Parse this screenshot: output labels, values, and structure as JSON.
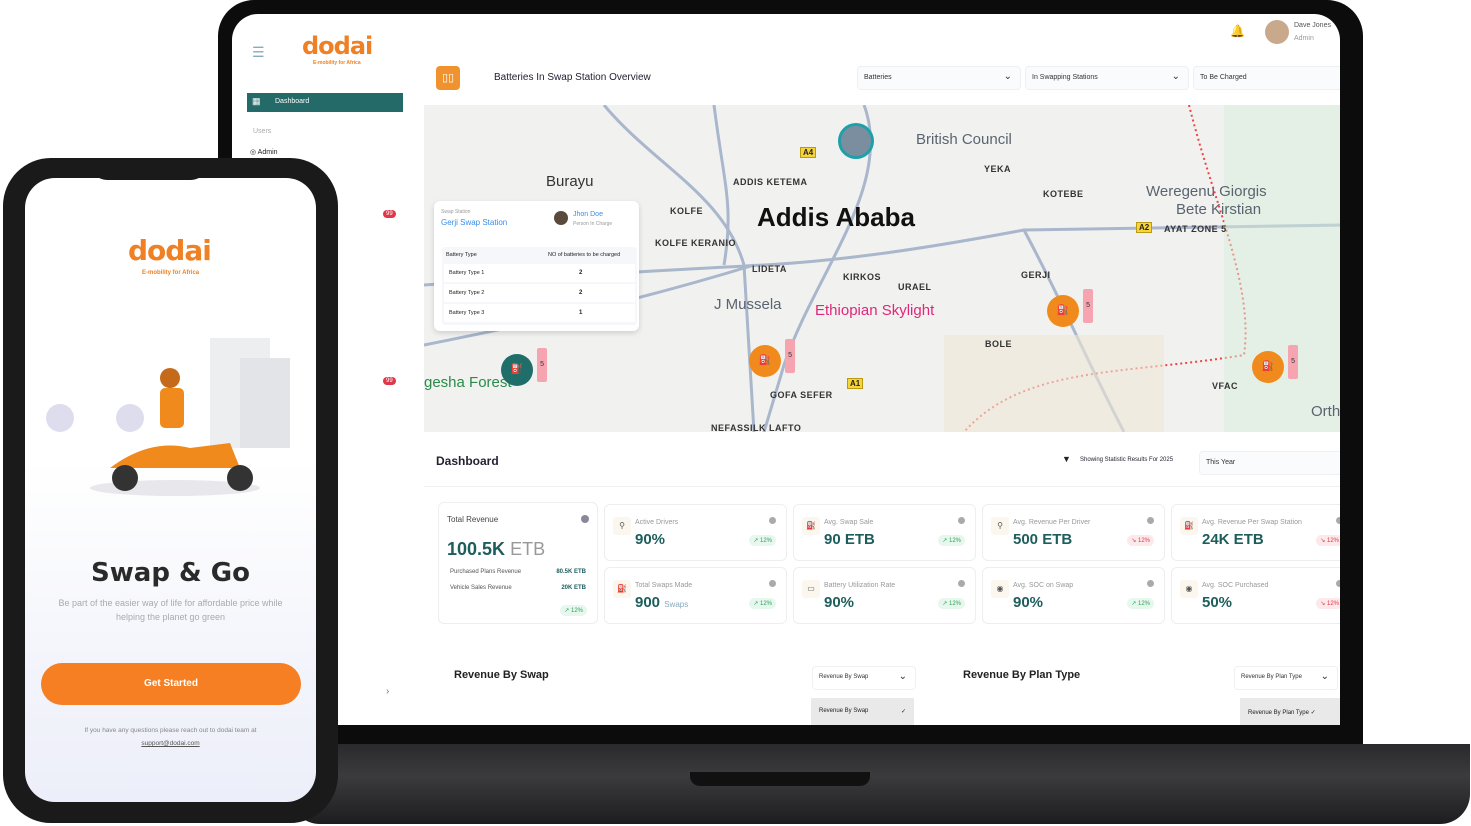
{
  "brand": {
    "name": "dodai",
    "tagline": "E-mobility for Africa",
    "accent": "#f08024",
    "primary": "#236a68"
  },
  "sidebar": {
    "dashboard": "Dashboard",
    "section_users": "Users",
    "admin": "Admin",
    "badges": [
      "99",
      "99"
    ]
  },
  "header": {
    "title": "Batteries In Swap Station Overview",
    "user_name": "Dave Jones",
    "user_role": "Admin",
    "filters": [
      "Batteries",
      "In Swapping Stations",
      "To Be Charged"
    ]
  },
  "map": {
    "labels": [
      "Burayu",
      "ADDIS KETEMA",
      "KOLFE",
      "Addis Ababa",
      "KOLFE KERANIO",
      "LIDETA",
      "KIRKOS",
      "URAEL",
      "J Mussela",
      "Ethiopian Skylight",
      "British Council",
      "YEKA",
      "KOTEBE",
      "Weregenu Giorgis",
      "Bete Kirstian",
      "AYAT ZONE 5",
      "GERJI",
      "BOLE",
      "GOFA SEFER",
      "VFAC",
      "Orth",
      "NEFASSILK LAFTO",
      "gesha Forest"
    ],
    "roads": [
      "A4",
      "A2",
      "A1"
    ],
    "marker_count": "5",
    "popup": {
      "label": "Swap Station",
      "station": "Gerji Swap Station",
      "person": "Jhon Doe",
      "person_role": "Person In Charge",
      "col1": "Battery Type",
      "col2": "NO of batteries to be charged",
      "rows": [
        {
          "type": "Battery Type 1",
          "count": "2"
        },
        {
          "type": "Battery Type 2",
          "count": "2"
        },
        {
          "type": "Battery Type 3",
          "count": "1"
        }
      ]
    }
  },
  "dashboard": {
    "title": "Dashboard",
    "filter_text": "Showing Statistic Results For 2025",
    "period": "This Year",
    "total": {
      "label": "Total Revenue",
      "value": "100.5K",
      "unit": "ETB",
      "rows": [
        {
          "k": "Purchased Plans Revenue",
          "v": "80.5K ETB"
        },
        {
          "k": "Vehicle Sales Revenue",
          "v": "20K ETB"
        }
      ],
      "change": "12%"
    },
    "cards": [
      {
        "label": "Active Drivers",
        "value": "90%",
        "change": "12%",
        "trend": "up"
      },
      {
        "label": "Avg. Swap Sale",
        "value": "90 ETB",
        "change": "12%",
        "trend": "up"
      },
      {
        "label": "Avg. Revenue Per Driver",
        "value": "500 ETB",
        "change": "12%",
        "trend": "down"
      },
      {
        "label": "Avg. Revenue Per Swap Station",
        "value": "24K ETB",
        "change": "12%",
        "trend": "down"
      },
      {
        "label": "Total Swaps Made",
        "value": "900",
        "sub": "Swaps",
        "change": "12%",
        "trend": "up"
      },
      {
        "label": "Battery Utilization Rate",
        "value": "90%",
        "change": "12%",
        "trend": "up"
      },
      {
        "label": "Avg. SOC on Swap",
        "value": "90%",
        "change": "12%",
        "trend": "up"
      },
      {
        "label": "Avg. SOC Purchased",
        "value": "50%",
        "change": "12%",
        "trend": "down"
      }
    ]
  },
  "charts": [
    {
      "title": "Revenue By Swap",
      "select": "Revenue By Swap",
      "option": "Revenue By Swap"
    },
    {
      "title": "Revenue By Plan Type",
      "select": "Revenue By Plan Type",
      "option": "Revenue By Plan Type"
    }
  ],
  "phone": {
    "headline": "Swap & Go",
    "subtitle": "Be part of the easier way of life for affordable price while helping the planet go green",
    "cta": "Get Started",
    "help": "If you have any questions please reach out to dodai team at",
    "email": "support@dodai.com"
  }
}
